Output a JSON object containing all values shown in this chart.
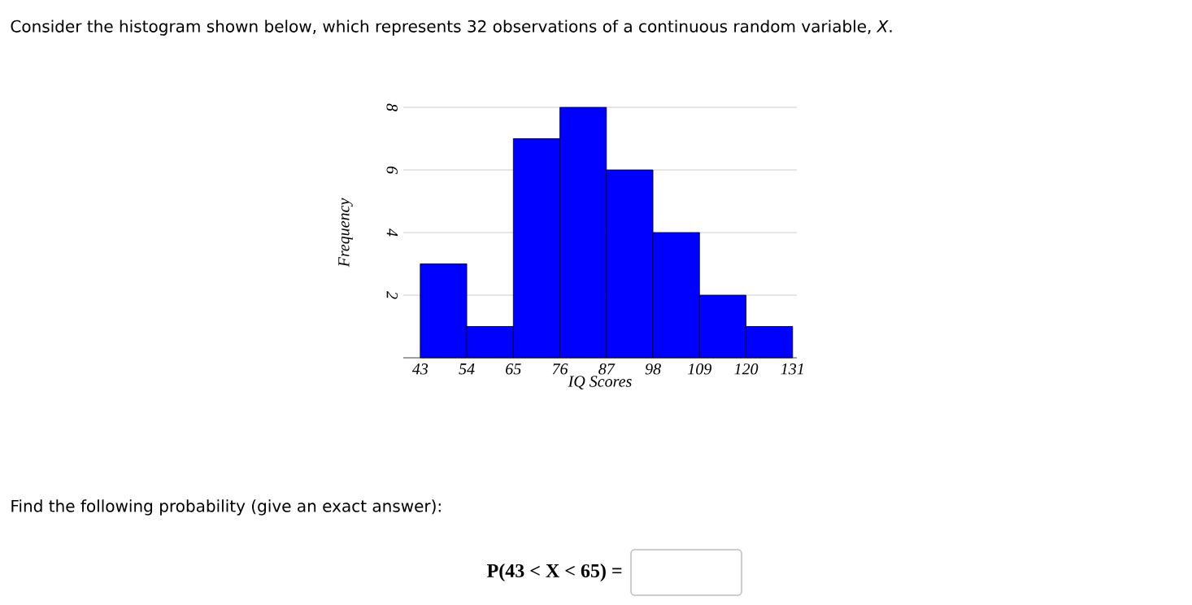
{
  "chart_data": {
    "type": "histogram",
    "title": "Consider the histogram shown below, which represents 32 observations of a continuous random variable, *X*.",
    "xlabel": "IQ Scores",
    "ylabel": "Frequency",
    "bins": [
      43,
      54,
      65,
      76,
      87,
      98,
      109,
      120,
      131
    ],
    "values": [
      3,
      1,
      7,
      8,
      6,
      4,
      2,
      1
    ],
    "color": "#0000ff",
    "xlim": [
      39,
      132
    ],
    "ylim": [
      0,
      8
    ],
    "xticks": [
      43,
      54,
      65,
      76,
      87,
      98,
      109,
      120,
      131
    ],
    "yticks": [
      2,
      4,
      6,
      8
    ],
    "grid": "y",
    "annotations": [
      "Find the following probability (give an exact answer):",
      "P(43 < X < 65) ="
    ]
  }
}
